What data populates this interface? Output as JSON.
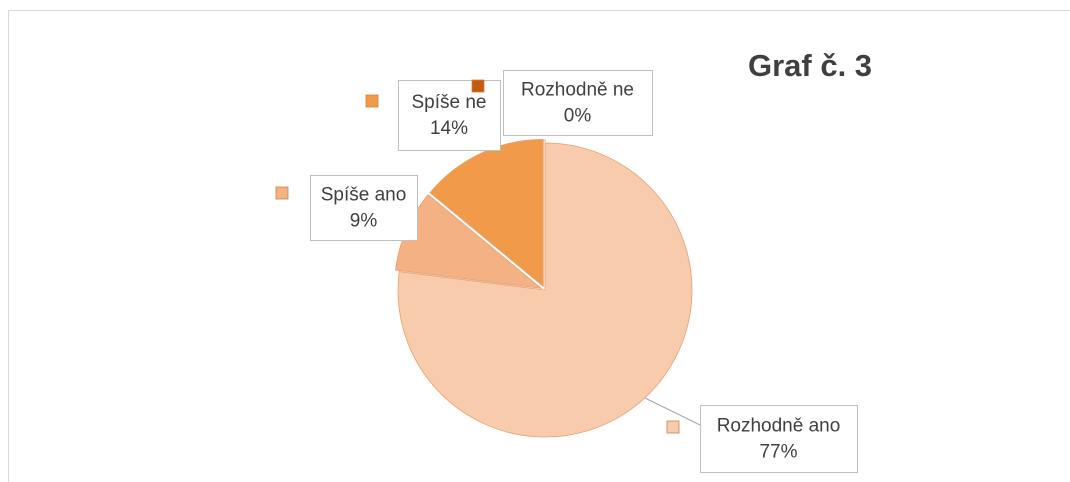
{
  "chart_data": {
    "type": "pie",
    "title": "Graf č. 3",
    "categories": [
      "Rozhodně ano",
      "Spíše ano",
      "Spíše ne",
      "Rozhodně ne"
    ],
    "values": [
      77,
      9,
      14,
      0
    ],
    "value_labels": [
      "77%",
      "9%",
      "14%",
      "0%"
    ],
    "colors": [
      "#f8cbad",
      "#f4b183",
      "#f09a4a",
      "#c55a11"
    ]
  }
}
